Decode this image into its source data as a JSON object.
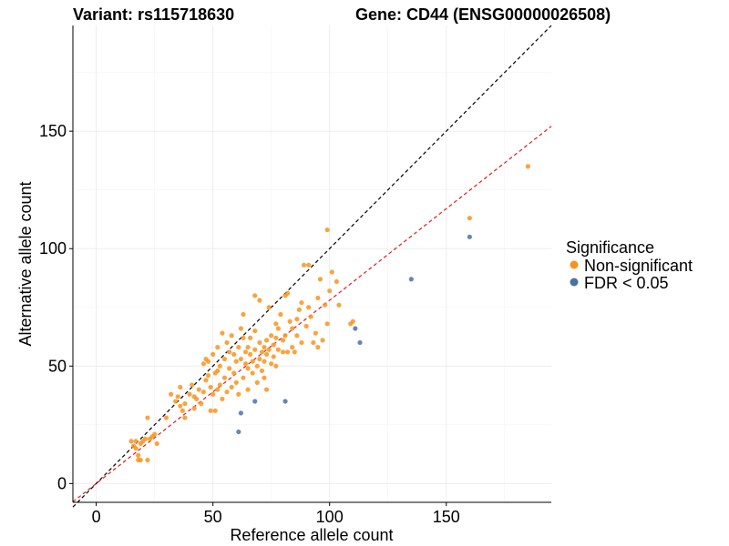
{
  "chart_data": {
    "type": "scatter",
    "title_left": "Variant: rs115718630",
    "title_right": "Gene: CD44 (ENSG00000026508)",
    "xlabel": "Reference allele count",
    "ylabel": "Alternative allele count",
    "xlim": [
      -10,
      195
    ],
    "ylim": [
      -8,
      195
    ],
    "xticks": [
      0,
      50,
      100,
      150
    ],
    "yticks": [
      0,
      50,
      100,
      150
    ],
    "grid": true,
    "legend": {
      "title": "Significance",
      "position": "right",
      "entries": [
        {
          "label": "Non-significant",
          "color": "#F7941D"
        },
        {
          "label": "FDR < 0.05",
          "color": "#4A72A4"
        }
      ]
    },
    "reference_lines": [
      {
        "style": "dashed",
        "color": "#000000",
        "slope": 1.0,
        "intercept": 0
      },
      {
        "style": "dashed",
        "color": "#E41A1C",
        "slope": 0.78,
        "intercept": 0
      }
    ],
    "series": [
      {
        "name": "Non-significant",
        "color": "#F7941D",
        "points": [
          [
            15,
            18
          ],
          [
            16,
            16
          ],
          [
            17,
            18
          ],
          [
            17,
            15
          ],
          [
            18,
            12
          ],
          [
            18,
            10
          ],
          [
            19,
            10
          ],
          [
            19,
            17
          ],
          [
            20,
            18
          ],
          [
            21,
            19
          ],
          [
            22,
            10
          ],
          [
            22,
            28
          ],
          [
            23,
            19
          ],
          [
            24,
            20
          ],
          [
            25,
            21
          ],
          [
            26,
            17
          ],
          [
            30,
            28
          ],
          [
            32,
            38
          ],
          [
            34,
            35
          ],
          [
            35,
            37
          ],
          [
            36,
            41
          ],
          [
            36,
            33
          ],
          [
            37,
            31
          ],
          [
            38,
            28
          ],
          [
            38,
            34
          ],
          [
            40,
            38
          ],
          [
            41,
            42
          ],
          [
            42,
            37
          ],
          [
            42,
            32
          ],
          [
            43,
            36
          ],
          [
            44,
            40
          ],
          [
            45,
            34
          ],
          [
            46,
            39
          ],
          [
            46,
            51
          ],
          [
            47,
            44
          ],
          [
            47,
            53
          ],
          [
            48,
            52
          ],
          [
            48,
            46
          ],
          [
            49,
            41
          ],
          [
            49,
            31
          ],
          [
            50,
            38
          ],
          [
            50,
            55
          ],
          [
            51,
            47
          ],
          [
            51,
            31
          ],
          [
            52,
            40
          ],
          [
            52,
            48
          ],
          [
            52,
            58
          ],
          [
            53,
            50
          ],
          [
            53,
            42
          ],
          [
            54,
            36
          ],
          [
            54,
            64
          ],
          [
            55,
            53
          ],
          [
            55,
            45
          ],
          [
            56,
            39
          ],
          [
            56,
            60
          ],
          [
            57,
            49
          ],
          [
            57,
            56
          ],
          [
            58,
            41
          ],
          [
            58,
            63
          ],
          [
            59,
            55
          ],
          [
            59,
            47
          ],
          [
            60,
            52
          ],
          [
            60,
            43
          ],
          [
            61,
            58
          ],
          [
            61,
            38
          ],
          [
            62,
            66
          ],
          [
            62,
            53
          ],
          [
            63,
            45
          ],
          [
            63,
            62
          ],
          [
            63,
            72
          ],
          [
            64,
            51
          ],
          [
            64,
            56
          ],
          [
            65,
            49
          ],
          [
            65,
            40
          ],
          [
            65,
            58
          ],
          [
            66,
            55
          ],
          [
            66,
            62
          ],
          [
            67,
            47
          ],
          [
            67,
            52
          ],
          [
            68,
            57
          ],
          [
            68,
            65
          ],
          [
            68,
            80
          ],
          [
            69,
            50
          ],
          [
            69,
            43
          ],
          [
            70,
            53
          ],
          [
            70,
            60
          ],
          [
            70,
            78
          ],
          [
            71,
            56
          ],
          [
            71,
            48
          ],
          [
            72,
            58
          ],
          [
            72,
            52
          ],
          [
            72,
            45
          ],
          [
            73,
            61
          ],
          [
            73,
            55
          ],
          [
            73,
            40
          ],
          [
            74,
            57
          ],
          [
            74,
            75
          ],
          [
            75,
            51
          ],
          [
            75,
            63
          ],
          [
            76,
            59
          ],
          [
            76,
            54
          ],
          [
            77,
            62
          ],
          [
            77,
            68
          ],
          [
            77,
            50
          ],
          [
            78,
            57
          ],
          [
            78,
            66
          ],
          [
            79,
            72
          ],
          [
            80,
            56
          ],
          [
            80,
            61
          ],
          [
            81,
            63
          ],
          [
            81,
            80
          ],
          [
            82,
            56
          ],
          [
            82,
            81
          ],
          [
            83,
            69
          ],
          [
            84,
            66
          ],
          [
            84,
            58
          ],
          [
            85,
            56
          ],
          [
            86,
            63
          ],
          [
            86,
            70
          ],
          [
            87,
            74
          ],
          [
            88,
            60
          ],
          [
            88,
            77
          ],
          [
            89,
            93
          ],
          [
            90,
            67
          ],
          [
            91,
            75
          ],
          [
            91,
            93
          ],
          [
            92,
            71
          ],
          [
            93,
            60
          ],
          [
            94,
            64
          ],
          [
            95,
            58
          ],
          [
            95,
            79
          ],
          [
            96,
            87
          ],
          [
            97,
            61
          ],
          [
            98,
            76
          ],
          [
            99,
            68
          ],
          [
            99,
            108
          ],
          [
            100,
            82
          ],
          [
            101,
            90
          ],
          [
            103,
            86
          ],
          [
            104,
            76
          ],
          [
            109,
            68
          ],
          [
            110,
            69
          ],
          [
            160,
            113
          ],
          [
            185,
            135
          ]
        ]
      },
      {
        "name": "FDR < 0.05",
        "color": "#4A72A4",
        "points": [
          [
            61,
            22
          ],
          [
            62,
            30
          ],
          [
            68,
            35
          ],
          [
            81,
            35
          ],
          [
            111,
            66
          ],
          [
            113,
            60
          ],
          [
            135,
            87
          ],
          [
            160,
            105
          ]
        ]
      }
    ]
  }
}
